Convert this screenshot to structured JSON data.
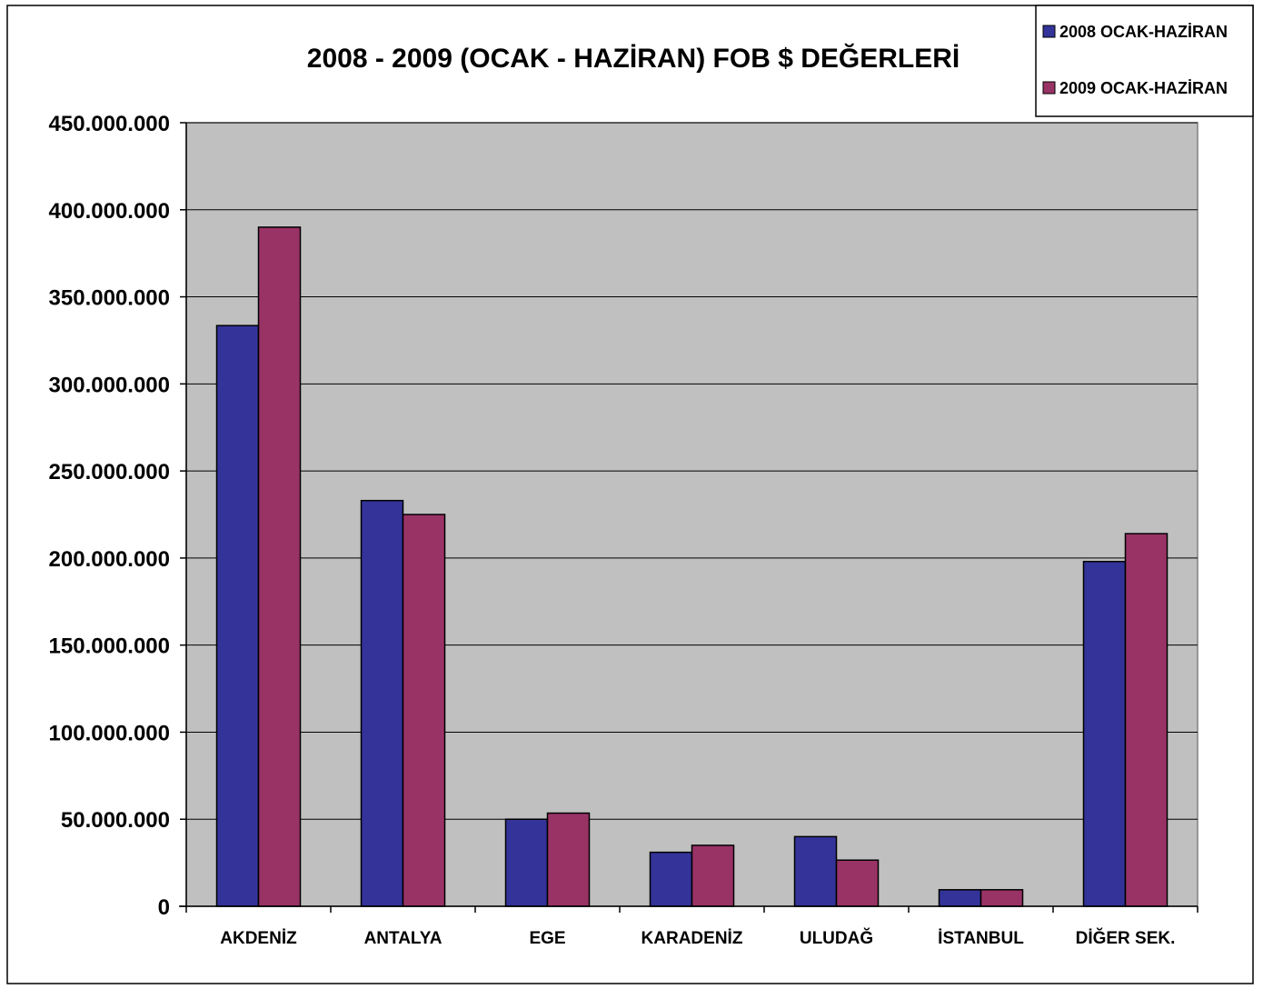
{
  "chart_data": {
    "type": "bar",
    "title": "2008 - 2009 (OCAK - HAZİRAN) FOB $ DEĞERLERİ",
    "categories": [
      "AKDENİZ",
      "ANTALYA",
      "EGE",
      "KARADENİZ",
      "ULUDAĞ",
      "İSTANBUL",
      "DİĞER SEK."
    ],
    "series": [
      {
        "name": "2008 OCAK-HAZİRAN",
        "color": "#333399",
        "values": [
          333500000,
          233000000,
          50000000,
          31000000,
          40000000,
          9500000,
          198000000
        ]
      },
      {
        "name": "2009 OCAK-HAZİRAN",
        "color": "#993366",
        "values": [
          390000000,
          225000000,
          53500000,
          35000000,
          26500000,
          9500000,
          214000000
        ]
      }
    ],
    "ylim": [
      0,
      450000000
    ],
    "yticks": [
      0,
      50000000,
      100000000,
      150000000,
      200000000,
      250000000,
      300000000,
      350000000,
      400000000,
      450000000
    ],
    "ytick_labels": [
      "0",
      "50.000.000",
      "100.000.000",
      "150.000.000",
      "200.000.000",
      "250.000.000",
      "300.000.000",
      "350.000.000",
      "400.000.000",
      "450.000.000"
    ],
    "xlabel": "",
    "ylabel": "",
    "grid": true,
    "plot_background": "#c0c0c0",
    "legend_position": "top-right"
  }
}
